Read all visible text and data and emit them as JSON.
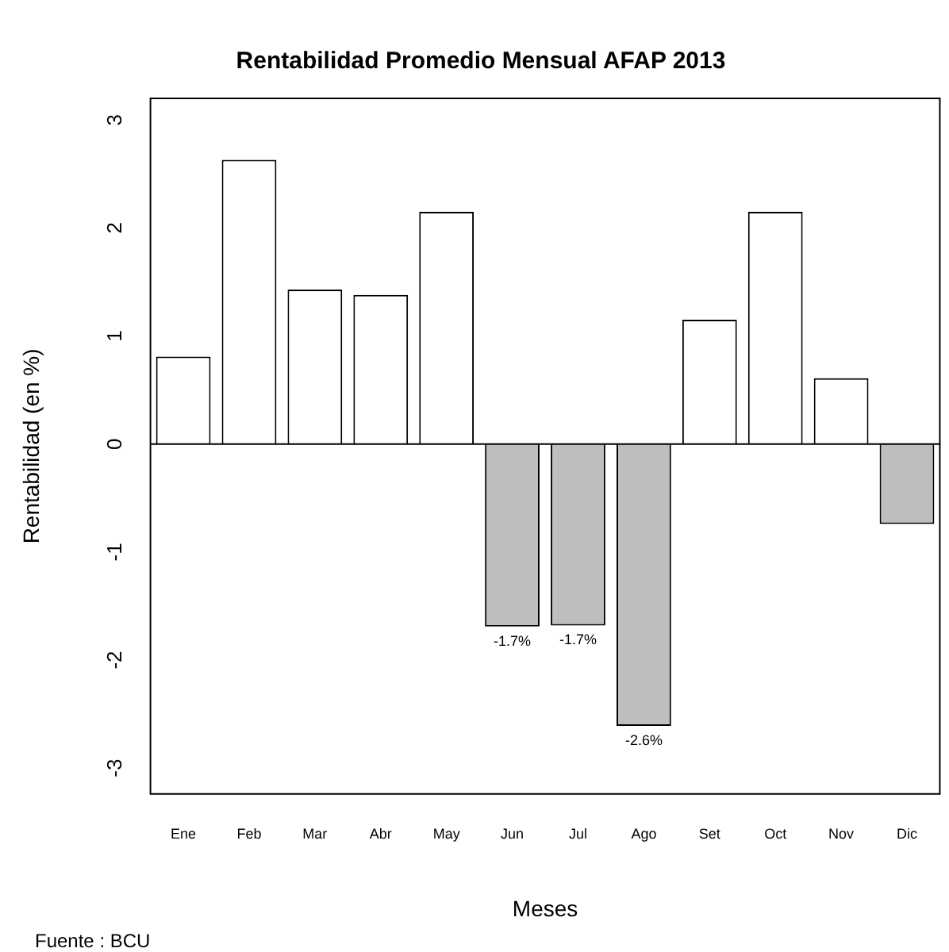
{
  "chart_data": {
    "type": "bar",
    "title": "Rentabilidad Promedio Mensual AFAP 2013",
    "xlabel": "Meses",
    "ylabel": "Rentabilidad (en %)",
    "categories": [
      "Ene",
      "Feb",
      "Mar",
      "Abr",
      "May",
      "Jun",
      "Jul",
      "Ago",
      "Set",
      "Oct",
      "Nov",
      "Dic"
    ],
    "values": [
      0.81,
      2.63,
      1.43,
      1.38,
      2.15,
      -1.69,
      -1.68,
      -2.61,
      1.15,
      2.15,
      0.61,
      -0.74
    ],
    "colors": [
      "#ffffff",
      "#ffffff",
      "#ffffff",
      "#ffffff",
      "#ffffff",
      "#bebebe",
      "#bebebe",
      "#bebebe",
      "#ffffff",
      "#ffffff",
      "#ffffff",
      "#bebebe"
    ],
    "value_labels": [
      null,
      null,
      null,
      null,
      null,
      "-1.7%",
      "-1.7%",
      "-2.6%",
      null,
      null,
      null,
      null
    ],
    "ylim": [
      -3.24,
      3.2
    ],
    "yticks": [
      -3,
      -2,
      -1,
      0,
      1,
      2,
      3
    ],
    "ref_lines": [
      {
        "axis": "y",
        "value": 0
      }
    ],
    "annotations": [
      "Fuente : BCU"
    ],
    "grid": false,
    "legend": false
  }
}
